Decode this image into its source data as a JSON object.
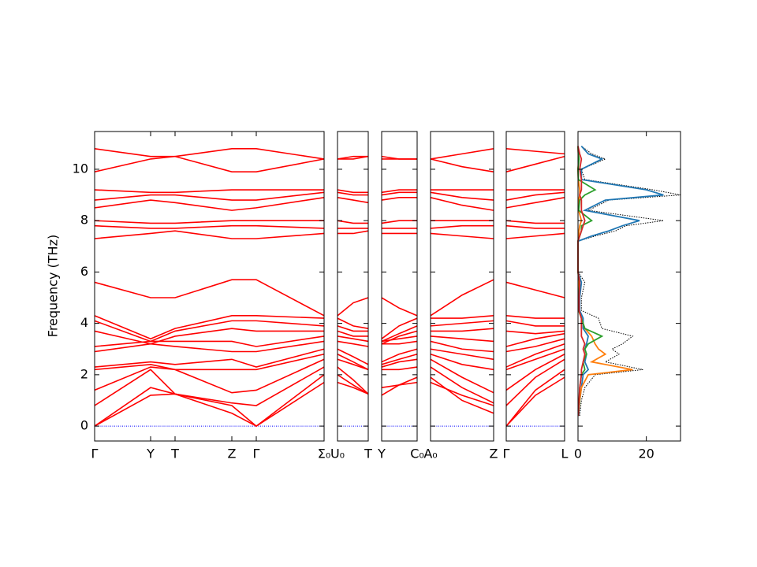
{
  "chart_data": {
    "type": "band",
    "ylabel": "Frequency (THz)",
    "ylim": [
      -0.58,
      11.47
    ],
    "yticks": [
      0,
      2,
      4,
      6,
      8,
      10
    ],
    "line_color": "#ff0000",
    "hline": 0,
    "hline_color": "#0000ff",
    "panels": [
      {
        "xlim": [
          0,
          2.91
        ],
        "xticks": [
          {
            "value": 0,
            "label": "Γ"
          },
          {
            "value": 0.71,
            "label": "Y"
          },
          {
            "value": 1.02,
            "label": "T"
          },
          {
            "value": 1.74,
            "label": "Z"
          },
          {
            "value": 2.05,
            "label": "Γ"
          },
          {
            "value": 2.91,
            "label": "Σ₀"
          }
        ],
        "x": [
          0,
          0.71,
          1.02,
          1.74,
          2.05,
          2.91
        ],
        "bands": [
          [
            0,
            1.2,
            1.25,
            0.5,
            0,
            2.0
          ],
          [
            0,
            1.5,
            1.25,
            0.8,
            0,
            1.7
          ],
          [
            0.8,
            2.2,
            1.25,
            0.9,
            0.8,
            2.3
          ],
          [
            1.4,
            2.3,
            2.2,
            1.3,
            1.4,
            2.6
          ],
          [
            2.2,
            2.4,
            2.2,
            2.2,
            2.2,
            2.8
          ],
          [
            2.3,
            2.5,
            2.4,
            2.6,
            2.3,
            3.0
          ],
          [
            2.9,
            3.2,
            3.1,
            2.9,
            2.9,
            3.3
          ],
          [
            3.1,
            3.3,
            3.3,
            3.3,
            3.1,
            3.5
          ],
          [
            3.7,
            3.2,
            3.5,
            3.8,
            3.7,
            3.7
          ],
          [
            4.1,
            3.3,
            3.7,
            4.1,
            4.1,
            3.9
          ],
          [
            4.3,
            3.4,
            3.8,
            4.3,
            4.3,
            4.2
          ],
          [
            5.6,
            5.0,
            5.0,
            5.7,
            5.7,
            4.3
          ],
          [
            7.3,
            7.5,
            7.6,
            7.3,
            7.3,
            7.5
          ],
          [
            7.8,
            7.7,
            7.7,
            7.8,
            7.8,
            7.7
          ],
          [
            8.0,
            7.9,
            7.9,
            8.0,
            8.0,
            8.0
          ],
          [
            8.5,
            8.8,
            8.7,
            8.4,
            8.5,
            8.9
          ],
          [
            8.8,
            9.0,
            9.0,
            8.8,
            8.8,
            9.1
          ],
          [
            9.2,
            9.1,
            9.1,
            9.2,
            9.2,
            9.2
          ],
          [
            9.9,
            10.4,
            10.5,
            9.9,
            9.9,
            10.4
          ],
          [
            10.8,
            10.5,
            10.5,
            10.8,
            10.8,
            10.4
          ]
        ]
      },
      {
        "xlim": [
          0,
          0.39
        ],
        "xticks": [
          {
            "value": 0,
            "label": "U₀"
          },
          {
            "value": 0.39,
            "label": "T"
          }
        ],
        "x": [
          0,
          0.2,
          0.39
        ],
        "bands": [
          [
            2.0,
            1.6,
            1.25
          ],
          [
            1.7,
            1.5,
            1.25
          ],
          [
            2.3,
            1.8,
            1.25
          ],
          [
            2.6,
            2.4,
            2.2
          ],
          [
            2.8,
            2.5,
            2.2
          ],
          [
            3.0,
            2.7,
            2.4
          ],
          [
            3.3,
            3.2,
            3.1
          ],
          [
            3.5,
            3.4,
            3.3
          ],
          [
            3.7,
            3.5,
            3.5
          ],
          [
            3.9,
            3.7,
            3.7
          ],
          [
            4.2,
            3.9,
            3.8
          ],
          [
            4.3,
            4.8,
            5.0
          ],
          [
            7.5,
            7.5,
            7.6
          ],
          [
            7.7,
            7.7,
            7.7
          ],
          [
            8.0,
            7.9,
            7.9
          ],
          [
            8.9,
            8.8,
            8.7
          ],
          [
            9.1,
            9.0,
            9.0
          ],
          [
            9.2,
            9.1,
            9.1
          ],
          [
            10.4,
            10.4,
            10.5
          ],
          [
            10.4,
            10.5,
            10.5
          ]
        ]
      },
      {
        "xlim": [
          0,
          0.45
        ],
        "xticks": [
          {
            "value": 0,
            "label": "Y"
          },
          {
            "value": 0.45,
            "label": "C₀"
          }
        ],
        "x": [
          0,
          0.22,
          0.45
        ],
        "bands": [
          [
            1.2,
            1.6,
            1.9
          ],
          [
            1.5,
            1.6,
            1.7
          ],
          [
            2.2,
            2.2,
            2.3
          ],
          [
            2.3,
            2.5,
            2.6
          ],
          [
            2.4,
            2.6,
            2.8
          ],
          [
            2.5,
            2.8,
            3.0
          ],
          [
            3.2,
            3.2,
            3.3
          ],
          [
            3.3,
            3.4,
            3.5
          ],
          [
            3.2,
            3.5,
            3.7
          ],
          [
            3.3,
            3.6,
            3.9
          ],
          [
            3.4,
            3.9,
            4.2
          ],
          [
            5.0,
            4.6,
            4.3
          ],
          [
            7.5,
            7.5,
            7.5
          ],
          [
            7.7,
            7.7,
            7.7
          ],
          [
            7.9,
            8.0,
            8.0
          ],
          [
            8.8,
            8.9,
            8.9
          ],
          [
            9.0,
            9.1,
            9.1
          ],
          [
            9.1,
            9.2,
            9.2
          ],
          [
            10.4,
            10.4,
            10.4
          ],
          [
            10.5,
            10.4,
            10.4
          ]
        ]
      },
      {
        "xlim": [
          0,
          0.8
        ],
        "xticks": [
          {
            "value": 0,
            "label": "A₀"
          },
          {
            "value": 0.8,
            "label": "Z"
          }
        ],
        "x": [
          0,
          0.4,
          0.8
        ],
        "bands": [
          [
            1.9,
            1.0,
            0.5
          ],
          [
            1.7,
            1.2,
            0.8
          ],
          [
            2.3,
            1.5,
            0.9
          ],
          [
            2.6,
            1.9,
            1.3
          ],
          [
            2.8,
            2.4,
            2.2
          ],
          [
            3.0,
            2.8,
            2.6
          ],
          [
            3.3,
            3.0,
            2.9
          ],
          [
            3.5,
            3.4,
            3.3
          ],
          [
            3.7,
            3.7,
            3.8
          ],
          [
            3.9,
            4.0,
            4.1
          ],
          [
            4.2,
            4.2,
            4.3
          ],
          [
            4.3,
            5.1,
            5.7
          ],
          [
            7.5,
            7.4,
            7.3
          ],
          [
            7.7,
            7.8,
            7.8
          ],
          [
            8.0,
            8.0,
            8.0
          ],
          [
            8.9,
            8.6,
            8.4
          ],
          [
            9.1,
            8.9,
            8.8
          ],
          [
            9.2,
            9.2,
            9.2
          ],
          [
            10.4,
            10.1,
            9.9
          ],
          [
            10.4,
            10.6,
            10.8
          ]
        ]
      },
      {
        "xlim": [
          0,
          0.74
        ],
        "xticks": [
          {
            "value": 0,
            "label": "Γ"
          },
          {
            "value": 0.74,
            "label": "L"
          }
        ],
        "x": [
          0,
          0.37,
          0.74
        ],
        "bands": [
          [
            0,
            1.2,
            1.9
          ],
          [
            0,
            1.4,
            2.2
          ],
          [
            0.8,
            1.9,
            2.6
          ],
          [
            1.4,
            2.2,
            2.8
          ],
          [
            2.2,
            2.6,
            3.0
          ],
          [
            2.3,
            2.8,
            3.2
          ],
          [
            2.9,
            3.1,
            3.4
          ],
          [
            3.1,
            3.4,
            3.6
          ],
          [
            3.7,
            3.6,
            3.7
          ],
          [
            4.1,
            3.9,
            3.9
          ],
          [
            4.3,
            4.2,
            4.2
          ],
          [
            5.6,
            5.3,
            5.0
          ],
          [
            7.3,
            7.4,
            7.5
          ],
          [
            7.8,
            7.7,
            7.7
          ],
          [
            8.0,
            7.9,
            7.9
          ],
          [
            8.5,
            8.7,
            8.9
          ],
          [
            8.8,
            9.0,
            9.1
          ],
          [
            9.2,
            9.2,
            9.2
          ],
          [
            9.9,
            10.2,
            10.5
          ],
          [
            10.8,
            10.7,
            10.6
          ]
        ]
      }
    ],
    "dos": {
      "type": "dos",
      "xlim": [
        0,
        30
      ],
      "xticks": [
        0,
        20
      ],
      "frequencies": [
        0.4,
        1,
        1.5,
        2,
        2.2,
        2.5,
        2.8,
        3,
        3.2,
        3.5,
        3.8,
        4.2,
        4.5,
        5,
        5.6,
        6,
        7.2,
        7.4,
        7.6,
        7.8,
        8,
        8.4,
        8.8,
        9,
        9.2,
        9.6,
        10,
        10.4,
        10.6,
        10.9
      ],
      "series": [
        {
          "color": "#1f77b4",
          "values": [
            0.2,
            0.5,
            1,
            1.5,
            3,
            2,
            2.5,
            2,
            2.5,
            3,
            1.5,
            1.5,
            0.5,
            0.5,
            1,
            0,
            0,
            4,
            9,
            13,
            18,
            2,
            8,
            25,
            20,
            1,
            1,
            7,
            3,
            1
          ]
        },
        {
          "color": "#ff7f0e",
          "values": [
            0.1,
            0.5,
            1,
            3,
            16,
            4,
            8,
            6,
            5,
            4,
            2,
            1,
            0.2,
            0.2,
            0.3,
            0,
            0,
            0.2,
            0.3,
            0.5,
            1,
            0.2,
            0.2,
            0.5,
            0.5,
            0.1,
            0,
            0.2,
            0.1,
            0
          ]
        },
        {
          "color": "#2ca02c",
          "values": [
            0.1,
            0.4,
            0.5,
            1,
            2,
            1.5,
            2.5,
            2,
            3,
            7,
            2,
            1,
            0.2,
            0.2,
            0.5,
            0,
            0,
            0.5,
            1,
            1,
            4,
            0.2,
            0.5,
            2,
            5,
            0.1,
            0,
            0.3,
            0.1,
            0
          ]
        },
        {
          "color": "#d62728",
          "values": [
            0.1,
            0.3,
            0.5,
            1,
            1,
            1.5,
            2,
            1.5,
            2,
            1,
            1,
            1,
            0.3,
            0.3,
            0.5,
            0,
            0,
            0.5,
            1,
            1.5,
            2,
            1,
            1,
            0.5,
            1,
            1,
            0.5,
            1,
            0.5,
            0
          ]
        }
      ],
      "total": {
        "color": "#000000",
        "dotted": true,
        "values": [
          0.5,
          1,
          2,
          5,
          19,
          8,
          12,
          10,
          13,
          16,
          7,
          6,
          1,
          1,
          2,
          0,
          0,
          5,
          11,
          14,
          25,
          3,
          9,
          30,
          22,
          2,
          1,
          8,
          4,
          1
        ]
      }
    }
  }
}
